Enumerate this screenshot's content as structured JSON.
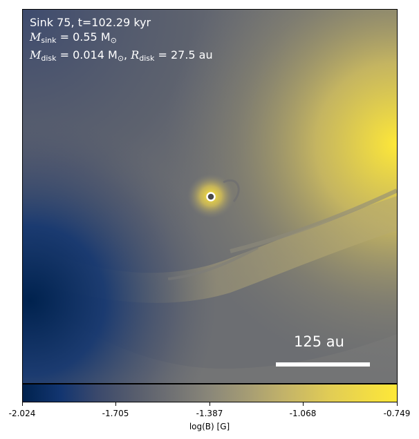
{
  "panel": {
    "title_line": "Sink 75, t=102.29 kyr",
    "sink_mass": {
      "symbol": "M",
      "subscript": "sink",
      "value": " = 0.55 M",
      "unit_symbol": "⊙"
    },
    "disk_mass": {
      "symbol": "M",
      "subscript": "disk",
      "value": " = 0.014 M",
      "unit_symbol": "⊙"
    },
    "disk_radius": {
      "symbol": "R",
      "subscript": "disk",
      "value": " = 27.5 au"
    }
  },
  "scalebar": {
    "label": "125 au"
  },
  "colorbar": {
    "label": "log(B) [G]",
    "ticks": [
      "-2.024",
      "-1.705",
      "-1.387",
      "-1.068",
      "-0.749"
    ],
    "min": -2.024,
    "max": -0.749,
    "colormap": "cividis"
  },
  "colors": {
    "low": "#00224e",
    "mid": "#7c7b78",
    "high": "#fee838",
    "text": "#ffffff"
  },
  "marker": {
    "name": "sink-particle",
    "color": "#ffffff"
  }
}
